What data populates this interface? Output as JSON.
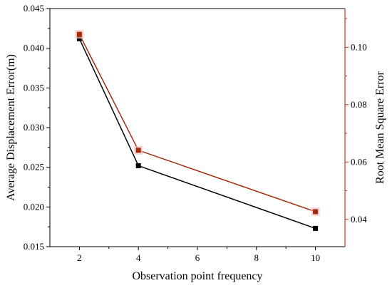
{
  "chart_data": {
    "type": "line",
    "title": "",
    "xlabel": "Observation point frequency",
    "ylabel_left": "Average Displacement Error(m)",
    "ylabel_right": "Root Mean Square Error",
    "x": [
      2,
      4,
      10
    ],
    "xlim": [
      1,
      11
    ],
    "xticks": [
      2,
      4,
      6,
      8,
      10
    ],
    "ylim_left": [
      0.015,
      0.045
    ],
    "yticks_left": [
      0.015,
      0.02,
      0.025,
      0.03,
      0.035,
      0.04,
      0.045
    ],
    "ylim_right": [
      0.0305,
      0.1135
    ],
    "yticks_right": [
      0.04,
      0.06,
      0.08,
      0.1
    ],
    "grid": false,
    "legend": "none",
    "series": [
      {
        "axis": "left",
        "color": "#000000",
        "marker": "square",
        "values": [
          0.0412,
          0.0252,
          0.0173
        ]
      },
      {
        "axis": "right",
        "color": "#a52a0a",
        "marker": "square",
        "values": [
          0.1045,
          0.0641,
          0.0427
        ]
      }
    ],
    "colors": {
      "right_axis": "#c0392b",
      "left_axis": "#000000"
    }
  }
}
